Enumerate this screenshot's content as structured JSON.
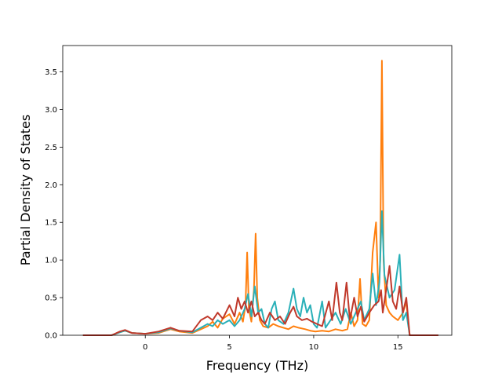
{
  "chart_data": {
    "type": "line",
    "title": "",
    "xlabel": "Frequency (THz)",
    "ylabel": "Partial Density of States",
    "xlim": [
      -4.9,
      18.2
    ],
    "ylim": [
      0.0,
      3.85
    ],
    "xticks": [
      0,
      5,
      10,
      15
    ],
    "xtick_labels": [
      "0",
      "5",
      "10",
      "15"
    ],
    "yticks": [
      0.0,
      0.5,
      1.0,
      1.5,
      2.0,
      2.5,
      3.0,
      3.5
    ],
    "ytick_labels": [
      "0.0",
      "0.5",
      "1.0",
      "1.5",
      "2.0",
      "2.5",
      "3.0",
      "3.5"
    ],
    "grid": false,
    "legend": "none",
    "series": [
      {
        "color": "#ff7f0e",
        "points": [
          [
            -3.7,
            0
          ],
          [
            -2.0,
            0
          ],
          [
            -1.5,
            0.04
          ],
          [
            -1.2,
            0.06
          ],
          [
            -0.8,
            0.03
          ],
          [
            0,
            0.02
          ],
          [
            0.8,
            0.03
          ],
          [
            1.5,
            0.08
          ],
          [
            2.0,
            0.05
          ],
          [
            2.8,
            0.03
          ],
          [
            3.3,
            0.08
          ],
          [
            3.7,
            0.12
          ],
          [
            4.0,
            0.18
          ],
          [
            4.3,
            0.1
          ],
          [
            4.6,
            0.22
          ],
          [
            5.0,
            0.28
          ],
          [
            5.3,
            0.15
          ],
          [
            5.6,
            0.3
          ],
          [
            5.8,
            0.18
          ],
          [
            5.95,
            0.4
          ],
          [
            6.05,
            1.1
          ],
          [
            6.15,
            0.35
          ],
          [
            6.3,
            0.18
          ],
          [
            6.45,
            0.6
          ],
          [
            6.55,
            1.35
          ],
          [
            6.65,
            0.5
          ],
          [
            6.8,
            0.2
          ],
          [
            7.0,
            0.12
          ],
          [
            7.3,
            0.1
          ],
          [
            7.6,
            0.15
          ],
          [
            7.9,
            0.12
          ],
          [
            8.2,
            0.1
          ],
          [
            8.5,
            0.08
          ],
          [
            8.8,
            0.12
          ],
          [
            9.1,
            0.1
          ],
          [
            9.5,
            0.08
          ],
          [
            9.8,
            0.06
          ],
          [
            10.1,
            0.05
          ],
          [
            10.5,
            0.06
          ],
          [
            10.9,
            0.05
          ],
          [
            11.3,
            0.08
          ],
          [
            11.7,
            0.06
          ],
          [
            12.0,
            0.08
          ],
          [
            12.2,
            0.3
          ],
          [
            12.4,
            0.12
          ],
          [
            12.6,
            0.2
          ],
          [
            12.75,
            0.75
          ],
          [
            12.9,
            0.15
          ],
          [
            13.1,
            0.12
          ],
          [
            13.3,
            0.2
          ],
          [
            13.5,
            1.1
          ],
          [
            13.7,
            1.5
          ],
          [
            13.85,
            0.5
          ],
          [
            13.95,
            1.0
          ],
          [
            14.05,
            3.65
          ],
          [
            14.15,
            1.0
          ],
          [
            14.3,
            0.4
          ],
          [
            14.5,
            0.3
          ],
          [
            14.7,
            0.25
          ],
          [
            15.0,
            0.2
          ],
          [
            15.3,
            0.3
          ],
          [
            15.5,
            0.45
          ],
          [
            15.6,
            0.2
          ],
          [
            15.7,
            0
          ],
          [
            17.4,
            0
          ]
        ]
      },
      {
        "color": "#2ab0b8",
        "points": [
          [
            -3.7,
            0
          ],
          [
            -2.0,
            0
          ],
          [
            -1.5,
            0.04
          ],
          [
            -1.2,
            0.06
          ],
          [
            -0.8,
            0.03
          ],
          [
            0,
            0.02
          ],
          [
            0.8,
            0.04
          ],
          [
            1.5,
            0.09
          ],
          [
            2.0,
            0.06
          ],
          [
            2.8,
            0.04
          ],
          [
            3.3,
            0.1
          ],
          [
            3.7,
            0.15
          ],
          [
            4.0,
            0.12
          ],
          [
            4.3,
            0.2
          ],
          [
            4.6,
            0.15
          ],
          [
            5.0,
            0.2
          ],
          [
            5.3,
            0.12
          ],
          [
            5.6,
            0.2
          ],
          [
            5.9,
            0.35
          ],
          [
            6.1,
            0.55
          ],
          [
            6.3,
            0.25
          ],
          [
            6.5,
            0.65
          ],
          [
            6.7,
            0.3
          ],
          [
            6.9,
            0.35
          ],
          [
            7.1,
            0.15
          ],
          [
            7.3,
            0.1
          ],
          [
            7.5,
            0.35
          ],
          [
            7.7,
            0.45
          ],
          [
            7.9,
            0.2
          ],
          [
            8.2,
            0.15
          ],
          [
            8.5,
            0.3
          ],
          [
            8.8,
            0.62
          ],
          [
            9.0,
            0.35
          ],
          [
            9.2,
            0.25
          ],
          [
            9.4,
            0.5
          ],
          [
            9.6,
            0.3
          ],
          [
            9.8,
            0.4
          ],
          [
            10.0,
            0.15
          ],
          [
            10.2,
            0.1
          ],
          [
            10.5,
            0.45
          ],
          [
            10.7,
            0.1
          ],
          [
            11.0,
            0.2
          ],
          [
            11.3,
            0.3
          ],
          [
            11.6,
            0.15
          ],
          [
            11.9,
            0.35
          ],
          [
            12.2,
            0.15
          ],
          [
            12.5,
            0.3
          ],
          [
            12.8,
            0.45
          ],
          [
            13.0,
            0.2
          ],
          [
            13.3,
            0.35
          ],
          [
            13.5,
            0.82
          ],
          [
            13.7,
            0.4
          ],
          [
            13.9,
            0.7
          ],
          [
            14.05,
            1.65
          ],
          [
            14.2,
            0.8
          ],
          [
            14.5,
            0.5
          ],
          [
            14.8,
            0.6
          ],
          [
            15.1,
            1.07
          ],
          [
            15.3,
            0.2
          ],
          [
            15.5,
            0.3
          ],
          [
            15.7,
            0
          ],
          [
            17.4,
            0
          ]
        ]
      },
      {
        "color": "#c0392b",
        "points": [
          [
            -3.7,
            0
          ],
          [
            -2.0,
            0
          ],
          [
            -1.5,
            0.05
          ],
          [
            -1.2,
            0.07
          ],
          [
            -0.8,
            0.03
          ],
          [
            0,
            0.02
          ],
          [
            0.8,
            0.05
          ],
          [
            1.5,
            0.1
          ],
          [
            2.0,
            0.06
          ],
          [
            2.8,
            0.05
          ],
          [
            3.3,
            0.2
          ],
          [
            3.7,
            0.25
          ],
          [
            4.0,
            0.2
          ],
          [
            4.3,
            0.3
          ],
          [
            4.6,
            0.22
          ],
          [
            5.0,
            0.4
          ],
          [
            5.3,
            0.25
          ],
          [
            5.5,
            0.5
          ],
          [
            5.7,
            0.35
          ],
          [
            5.9,
            0.45
          ],
          [
            6.1,
            0.3
          ],
          [
            6.3,
            0.45
          ],
          [
            6.5,
            0.25
          ],
          [
            6.7,
            0.3
          ],
          [
            6.9,
            0.2
          ],
          [
            7.1,
            0.15
          ],
          [
            7.4,
            0.3
          ],
          [
            7.7,
            0.2
          ],
          [
            8.0,
            0.25
          ],
          [
            8.3,
            0.15
          ],
          [
            8.6,
            0.3
          ],
          [
            8.8,
            0.38
          ],
          [
            9.0,
            0.25
          ],
          [
            9.3,
            0.2
          ],
          [
            9.6,
            0.22
          ],
          [
            9.9,
            0.18
          ],
          [
            10.2,
            0.15
          ],
          [
            10.5,
            0.12
          ],
          [
            10.9,
            0.45
          ],
          [
            11.1,
            0.2
          ],
          [
            11.35,
            0.7
          ],
          [
            11.55,
            0.3
          ],
          [
            11.7,
            0.2
          ],
          [
            11.95,
            0.7
          ],
          [
            12.15,
            0.2
          ],
          [
            12.4,
            0.5
          ],
          [
            12.6,
            0.25
          ],
          [
            12.8,
            0.38
          ],
          [
            13.0,
            0.18
          ],
          [
            13.3,
            0.3
          ],
          [
            13.6,
            0.4
          ],
          [
            13.85,
            0.45
          ],
          [
            14.0,
            0.6
          ],
          [
            14.1,
            0.3
          ],
          [
            14.3,
            0.6
          ],
          [
            14.5,
            0.92
          ],
          [
            14.7,
            0.45
          ],
          [
            14.9,
            0.35
          ],
          [
            15.1,
            0.65
          ],
          [
            15.3,
            0.3
          ],
          [
            15.5,
            0.5
          ],
          [
            15.7,
            0
          ],
          [
            17.4,
            0
          ]
        ]
      }
    ]
  }
}
